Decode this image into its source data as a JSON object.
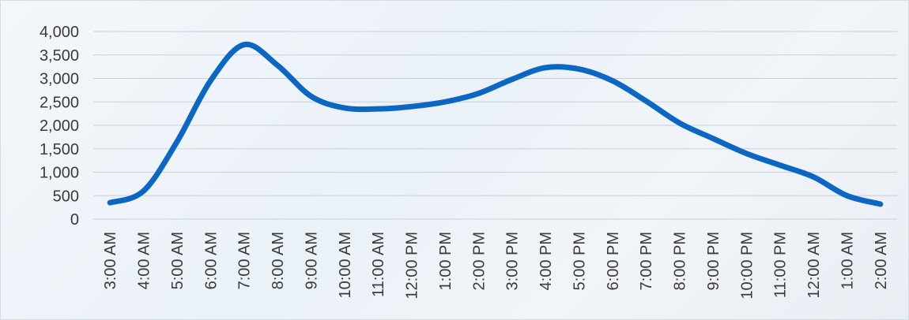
{
  "chart_data": {
    "type": "line",
    "title": "",
    "xlabel": "",
    "ylabel": "",
    "ylim": [
      0,
      4000
    ],
    "yticks": [
      "0",
      "500",
      "1,000",
      "1,500",
      "2,000",
      "2,500",
      "3,000",
      "3,500",
      "4,000"
    ],
    "categories": [
      "3:00 AM",
      "4:00 AM",
      "5:00 AM",
      "6:00 AM",
      "7:00 AM",
      "8:00 AM",
      "9:00 AM",
      "10:00 AM",
      "11:00 AM",
      "12:00 PM",
      "1:00 PM",
      "2:00 PM",
      "3:00 PM",
      "4:00 PM",
      "5:00 PM",
      "6:00 PM",
      "7:00 PM",
      "8:00 PM",
      "9:00 PM",
      "10:00 PM",
      "11:00 PM",
      "12:00 AM",
      "1:00 AM",
      "2:00 AM"
    ],
    "series": [
      {
        "values": [
          350,
          600,
          1650,
          2950,
          3720,
          3280,
          2620,
          2370,
          2350,
          2400,
          2500,
          2680,
          2980,
          3230,
          3200,
          2950,
          2520,
          2050,
          1720,
          1400,
          1150,
          900,
          500,
          320
        ],
        "color": "#0b67c2"
      }
    ],
    "grid": true,
    "legend": "none"
  }
}
